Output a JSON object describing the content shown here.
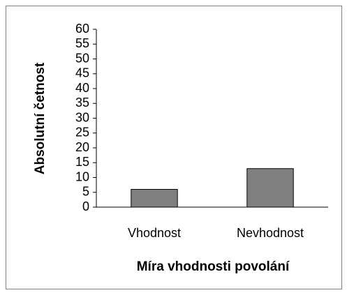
{
  "chart_data": {
    "type": "bar",
    "categories": [
      "Vhodnost",
      "Nevhodnost"
    ],
    "values": [
      6,
      13
    ],
    "color": "#808080",
    "xlabel": "Míra vhodnosti povolání",
    "ylabel": "Absolutní četnost",
    "ylim": [
      0,
      60
    ],
    "yticks": [
      0,
      5,
      10,
      15,
      20,
      25,
      30,
      35,
      40,
      45,
      50,
      55,
      60
    ],
    "grid": false
  }
}
